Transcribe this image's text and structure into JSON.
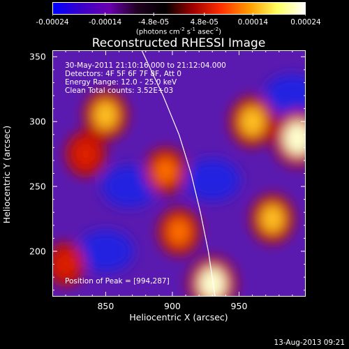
{
  "colorbar": {
    "tick_labels": [
      "-0.00024",
      "-0.00014",
      "-4.8e-05",
      "4.8e-05",
      "0.00014",
      "0.00024"
    ],
    "tick_values": [
      -0.00024,
      -0.00014,
      -4.8e-05,
      4.8e-05,
      0.00014,
      0.00024
    ],
    "range": [
      -0.00024,
      0.00024
    ],
    "unit_text": "(photons cm",
    "unit_sup1": "-2",
    "unit_mid1": " s",
    "unit_sup2": "-1",
    "unit_mid2": " asec",
    "unit_sup3": "-2",
    "unit_end": ")",
    "colors": [
      "#0000ff",
      "#3a00c8",
      "#6a00b0",
      "#200020",
      "#000000",
      "#a00000",
      "#ff3000",
      "#ff9a00",
      "#ffff60",
      "#ffffff"
    ]
  },
  "chart_data": {
    "type": "heatmap",
    "title": "Reconstructed RHESSI Image",
    "xlabel": "Heliocentric X (arcsec)",
    "ylabel": "Heliocentric Y (arcsec)",
    "xlim": [
      810,
      1000
    ],
    "ylim": [
      165,
      355
    ],
    "x_ticks": [
      850,
      900,
      950
    ],
    "y_ticks": [
      200,
      250,
      300,
      350
    ],
    "limb_points": [
      [
        877,
        355
      ],
      [
        893,
        320
      ],
      [
        905,
        290
      ],
      [
        914,
        260
      ],
      [
        921,
        230
      ],
      [
        927,
        200
      ],
      [
        932,
        165
      ]
    ],
    "hot_spots": [
      {
        "x": 994,
        "y": 287,
        "value": 0.00024
      },
      {
        "x": 960,
        "y": 300,
        "value": 0.00018
      },
      {
        "x": 930,
        "y": 175,
        "value": 0.00022
      },
      {
        "x": 975,
        "y": 225,
        "value": 0.00016
      },
      {
        "x": 850,
        "y": 305,
        "value": 0.00017
      },
      {
        "x": 835,
        "y": 275,
        "value": 0.00012
      },
      {
        "x": 895,
        "y": 262,
        "value": 0.00013
      },
      {
        "x": 905,
        "y": 215,
        "value": 0.00014
      },
      {
        "x": 820,
        "y": 190,
        "value": 0.0001
      }
    ],
    "cold_spots": [
      {
        "x": 868,
        "y": 250,
        "value": -0.00014
      },
      {
        "x": 930,
        "y": 255,
        "value": -0.00012
      },
      {
        "x": 850,
        "y": 200,
        "value": -0.0001
      },
      {
        "x": 990,
        "y": 320,
        "value": -9e-05
      }
    ]
  },
  "annotations": {
    "time_range": "30-May-2011 21:10:16.000 to 21:12:04.000",
    "detectors": "Detectors: 4F 5F 6F 7F 8F, Att 0",
    "energy": "Energy Range: 12.0 - 25.0 keV",
    "clean": "Clean     Total counts: 3.52E+03",
    "peak": "Position of Peak = [994,287]"
  },
  "footer": {
    "timestamp": "13-Aug-2013 09:21"
  }
}
